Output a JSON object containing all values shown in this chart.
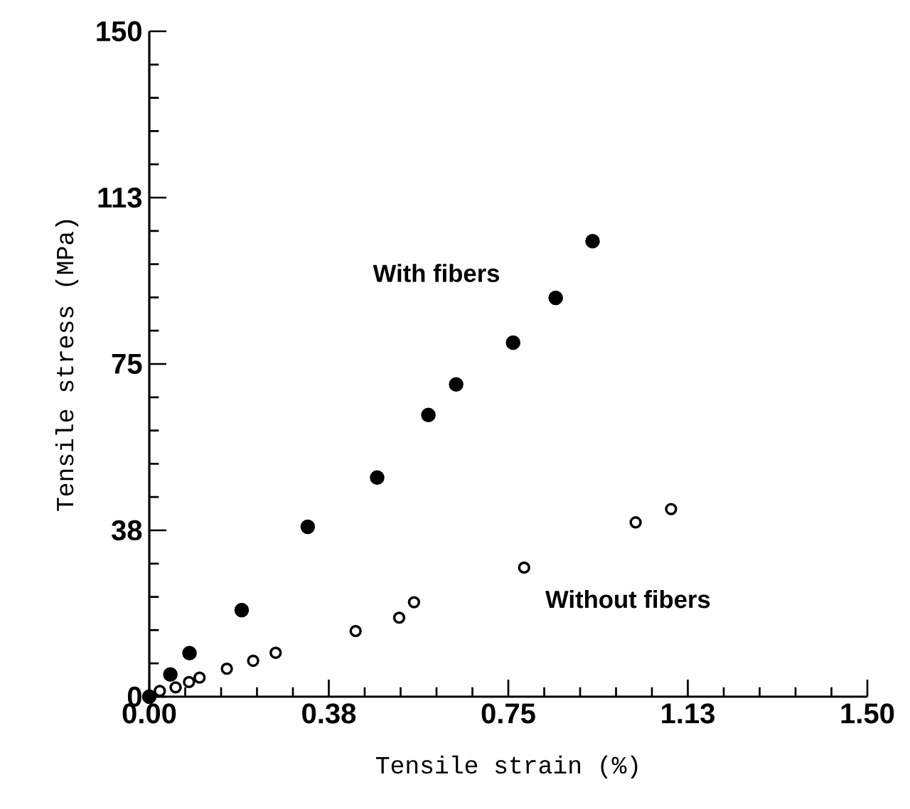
{
  "chart_data": {
    "type": "scatter",
    "xlabel": "Tensile strain (%)",
    "ylabel": "Tensile stress (MPa)",
    "xlim": [
      0,
      1.5
    ],
    "ylim": [
      0,
      150
    ],
    "xticks": [
      {
        "value": 0,
        "label": "0.00"
      },
      {
        "value": 0.375,
        "label": "0.38"
      },
      {
        "value": 0.75,
        "label": "0.75"
      },
      {
        "value": 1.125,
        "label": "1.13"
      },
      {
        "value": 1.5,
        "label": "1.50"
      }
    ],
    "yticks": [
      0,
      {
        "value": 37.5,
        "label": "38"
      },
      75,
      {
        "value": 112.5,
        "label": "113"
      },
      150
    ],
    "series": [
      {
        "name": "With fibers",
        "color": "#000000",
        "x": [
          0,
          0.044,
          0.084,
          0.193,
          0.331,
          0.476,
          0.583,
          0.641,
          0.76,
          0.849,
          0.926
        ],
        "values": [
          0,
          5.0,
          9.8,
          19.5,
          38.3,
          49.4,
          63.5,
          70.4,
          79.8,
          89.9,
          102.7
        ]
      },
      {
        "name": "Without fibers",
        "color": "#000000",
        "x": [
          0.022,
          0.055,
          0.083,
          0.105,
          0.162,
          0.217,
          0.264,
          0.431,
          0.522,
          0.553,
          0.783,
          1.016,
          1.09
        ],
        "values": [
          1.3,
          2.1,
          3.3,
          4.3,
          6.3,
          8.1,
          9.9,
          14.8,
          17.8,
          21.3,
          29.1,
          39.3,
          42.3
        ]
      }
    ]
  }
}
